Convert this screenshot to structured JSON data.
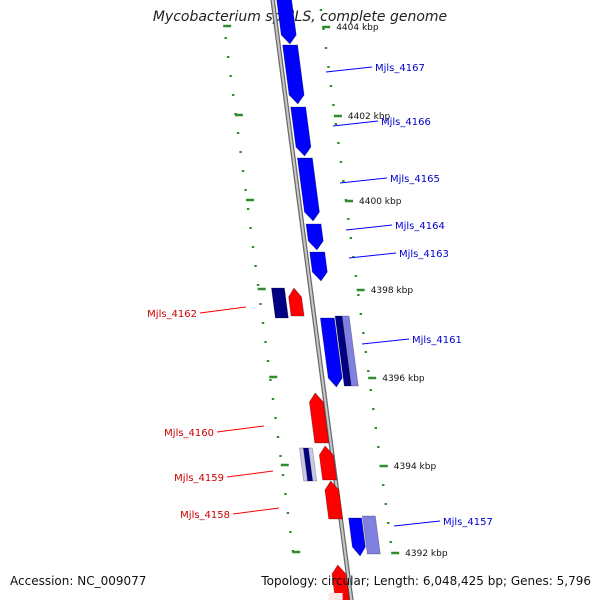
{
  "title": "Mycobacterium sp. JLS, complete genome",
  "accession": "Accession: NC_009077",
  "summary": {
    "topology": "Topology: circular",
    "length": "Length: 6,048,425 bp",
    "genes": "Genes: 5,796"
  },
  "colors": {
    "forward_gene": "#0000ff",
    "reverse_gene": "#ff0000",
    "forward_dark": "#000080",
    "forward_light": "#8080e0",
    "reverse_dark": "#000080",
    "reverse_light": "#c8c8e8",
    "backbone": "#909090",
    "tick": "#2e8b2e"
  },
  "ticks": [
    {
      "label": "4404 kbp"
    },
    {
      "label": "4402 kbp"
    },
    {
      "label": "4400 kbp"
    },
    {
      "label": "4398 kbp"
    },
    {
      "label": "4396 kbp"
    },
    {
      "label": "4394 kbp"
    },
    {
      "label": "4392 kbp"
    }
  ],
  "forward_genes": [
    {
      "id": "Mjls_4167"
    },
    {
      "id": "Mjls_4166"
    },
    {
      "id": "Mjls_4165"
    },
    {
      "id": "Mjls_4164"
    },
    {
      "id": "Mjls_4163"
    },
    {
      "id": "Mjls_4161"
    },
    {
      "id": "Mjls_4157"
    }
  ],
  "reverse_genes": [
    {
      "id": "Mjls_4162"
    },
    {
      "id": "Mjls_4160"
    },
    {
      "id": "Mjls_4159"
    },
    {
      "id": "Mjls_4158"
    }
  ]
}
